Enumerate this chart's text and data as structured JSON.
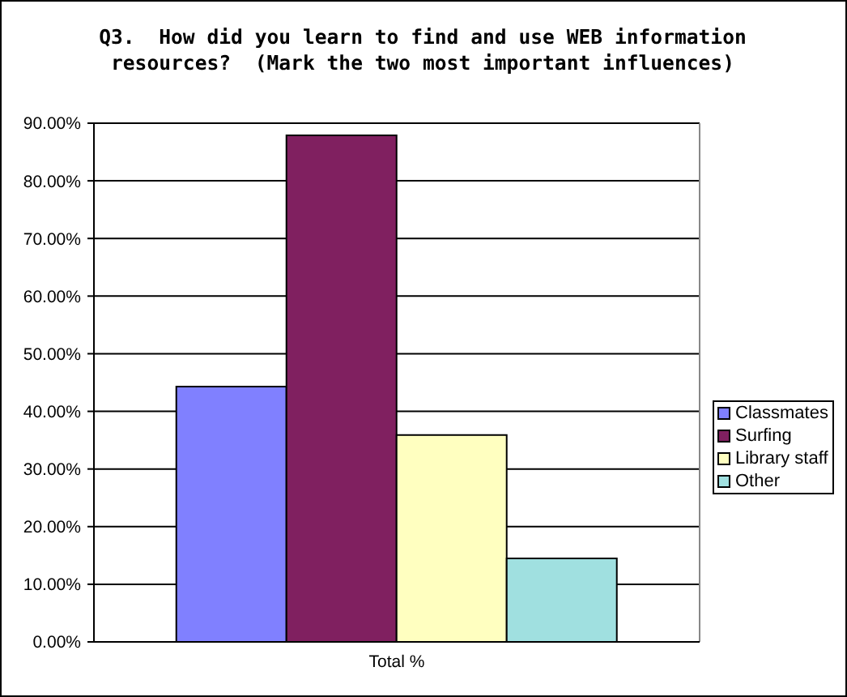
{
  "chart_data": {
    "type": "bar",
    "title": "Q3.  How did you learn to find and use WEB information resources?  (Mark the two most important influences)",
    "categories": [
      "Total %"
    ],
    "series": [
      {
        "name": "Classmates",
        "color": "#8080ff",
        "values": [
          44.3
        ]
      },
      {
        "name": "Surfing",
        "color": "#802060",
        "values": [
          87.9
        ]
      },
      {
        "name": "Library staff",
        "color": "#ffffc0",
        "values": [
          35.9
        ]
      },
      {
        "name": "Other",
        "color": "#a0e0e0",
        "values": [
          14.5
        ]
      }
    ],
    "ylim": [
      0,
      90
    ],
    "yticks": [
      {
        "value": 0,
        "label": "0.00%"
      },
      {
        "value": 10,
        "label": "10.00%"
      },
      {
        "value": 20,
        "label": "20.00%"
      },
      {
        "value": 30,
        "label": "30.00%"
      },
      {
        "value": 40,
        "label": "40.00%"
      },
      {
        "value": 50,
        "label": "50.00%"
      },
      {
        "value": 60,
        "label": "60.00%"
      },
      {
        "value": 70,
        "label": "70.00%"
      },
      {
        "value": 80,
        "label": "80.00%"
      },
      {
        "value": 90,
        "label": "90.00%"
      }
    ],
    "grid": "y",
    "legend": "right"
  }
}
